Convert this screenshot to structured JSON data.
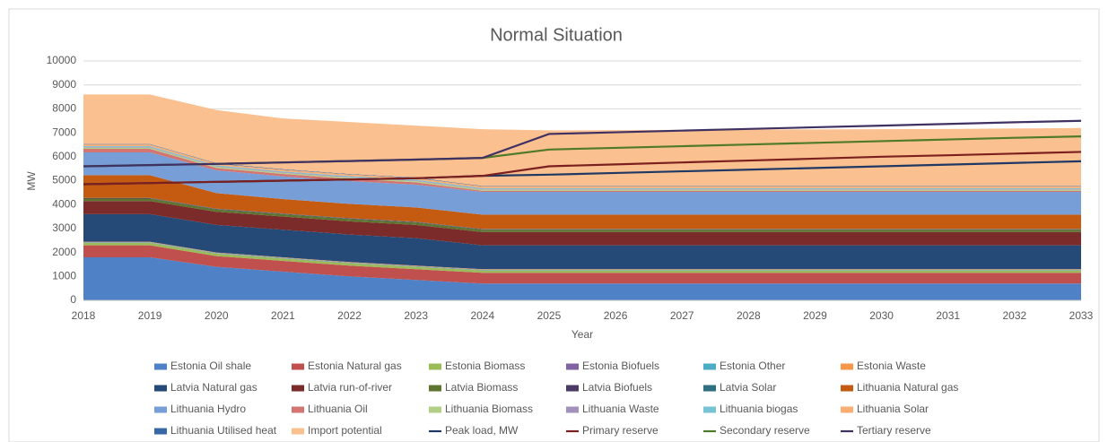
{
  "chart_data": {
    "type": "stacked-area",
    "title": "Normal Situation",
    "x_label": "Year",
    "y_label": "MW",
    "categories": [
      "2018",
      "2019",
      "2020",
      "2021",
      "2022",
      "2023",
      "2024",
      "2025",
      "2026",
      "2027",
      "2028",
      "2029",
      "2030",
      "2031",
      "2032",
      "2033"
    ],
    "ylim": [
      0,
      10000
    ],
    "yticks": [
      0,
      1000,
      2000,
      3000,
      4000,
      5000,
      6000,
      7000,
      8000,
      9000,
      10000
    ],
    "grid": true,
    "legend": "bottom",
    "series": [
      {
        "name": "Estonia Oil shale",
        "color": "#4f81c7",
        "values": [
          1800,
          1800,
          1400,
          1200,
          1000,
          850,
          700,
          700,
          700,
          700,
          700,
          700,
          700,
          700,
          700,
          700
        ]
      },
      {
        "name": "Estonia Natural gas",
        "color": "#c0504d",
        "values": [
          500,
          500,
          450,
          450,
          450,
          450,
          450,
          450,
          450,
          450,
          450,
          450,
          450,
          450,
          450,
          450
        ]
      },
      {
        "name": "Estonia Biomass",
        "color": "#9bbb59",
        "values": [
          100,
          100,
          100,
          100,
          100,
          100,
          100,
          100,
          100,
          100,
          100,
          100,
          100,
          100,
          100,
          100
        ]
      },
      {
        "name": "Estonia Biofuels",
        "color": "#8064a2",
        "values": [
          10,
          10,
          10,
          10,
          10,
          10,
          10,
          10,
          10,
          10,
          10,
          10,
          10,
          10,
          10,
          10
        ]
      },
      {
        "name": "Estonia Other",
        "color": "#4bacc6",
        "values": [
          20,
          20,
          20,
          20,
          20,
          20,
          20,
          20,
          20,
          20,
          20,
          20,
          20,
          20,
          20,
          20
        ]
      },
      {
        "name": "Estonia Waste",
        "color": "#f79646",
        "values": [
          20,
          20,
          20,
          20,
          20,
          20,
          20,
          20,
          20,
          20,
          20,
          20,
          20,
          20,
          20,
          20
        ]
      },
      {
        "name": "Latvia Natural gas",
        "color": "#264a78",
        "values": [
          1150,
          1150,
          1150,
          1150,
          1150,
          1150,
          1000,
          1000,
          1000,
          1000,
          1000,
          1000,
          1000,
          1000,
          1000,
          1000
        ]
      },
      {
        "name": "Latvia run-of-river",
        "color": "#7b2c2a",
        "values": [
          550,
          550,
          550,
          550,
          550,
          550,
          550,
          550,
          550,
          550,
          550,
          550,
          550,
          550,
          550,
          550
        ]
      },
      {
        "name": "Latvia Biomass",
        "color": "#5e7530",
        "values": [
          100,
          100,
          100,
          100,
          100,
          100,
          100,
          100,
          100,
          100,
          100,
          100,
          100,
          100,
          100,
          100
        ]
      },
      {
        "name": "Latvia Biofuels",
        "color": "#4b3a66",
        "values": [
          20,
          20,
          20,
          20,
          20,
          20,
          20,
          20,
          20,
          20,
          20,
          20,
          20,
          20,
          20,
          20
        ]
      },
      {
        "name": "Latvia Solar",
        "color": "#2e6f80",
        "values": [
          10,
          10,
          10,
          10,
          10,
          10,
          10,
          10,
          10,
          10,
          10,
          10,
          10,
          10,
          10,
          10
        ]
      },
      {
        "name": "Lithuania Natural gas",
        "color": "#c55a11",
        "values": [
          950,
          950,
          650,
          600,
          600,
          600,
          600,
          600,
          600,
          600,
          600,
          600,
          600,
          600,
          600,
          600
        ]
      },
      {
        "name": "Lithuania Hydro",
        "color": "#779ed6",
        "values": [
          950,
          950,
          950,
          950,
          950,
          950,
          950,
          950,
          950,
          950,
          950,
          950,
          950,
          950,
          950,
          950
        ]
      },
      {
        "name": "Lithuania Oil",
        "color": "#d27573",
        "values": [
          150,
          150,
          100,
          100,
          100,
          100,
          50,
          50,
          50,
          50,
          50,
          50,
          50,
          50,
          50,
          50
        ]
      },
      {
        "name": "Lithuania Biomass",
        "color": "#b3cf87",
        "values": [
          50,
          50,
          50,
          50,
          50,
          50,
          50,
          50,
          50,
          50,
          50,
          50,
          50,
          50,
          50,
          50
        ]
      },
      {
        "name": "Lithuania Waste",
        "color": "#a391bd",
        "values": [
          30,
          30,
          30,
          30,
          30,
          30,
          30,
          30,
          30,
          30,
          30,
          30,
          30,
          30,
          30,
          30
        ]
      },
      {
        "name": "Lithuania biogas",
        "color": "#78c2d6",
        "values": [
          30,
          30,
          30,
          30,
          30,
          30,
          30,
          30,
          30,
          30,
          30,
          30,
          30,
          30,
          30,
          30
        ]
      },
      {
        "name": "Lithuania Solar",
        "color": "#f9ae73",
        "values": [
          70,
          70,
          70,
          70,
          70,
          70,
          70,
          70,
          70,
          70,
          70,
          70,
          70,
          70,
          70,
          70
        ]
      },
      {
        "name": "Lithuania Utilised heat",
        "color": "#3867a5",
        "values": [
          20,
          20,
          20,
          20,
          20,
          20,
          20,
          20,
          20,
          20,
          20,
          20,
          20,
          20,
          20,
          20
        ]
      },
      {
        "name": "Import potential",
        "color": "#fac090",
        "values": [
          2070,
          2070,
          2220,
          2120,
          2170,
          2170,
          2370,
          2320,
          2330,
          2340,
          2350,
          2360,
          2370,
          2380,
          2400,
          2420
        ]
      },
      {
        "name": "Peak load, MW",
        "color": "#1f3864",
        "type": "line",
        "values": [
          4850,
          4900,
          4950,
          5000,
          5050,
          5100,
          5200,
          5250,
          5320,
          5390,
          5460,
          5530,
          5600,
          5670,
          5740,
          5810
        ]
      },
      {
        "name": "Primary reserve",
        "color": "#7b1f1f",
        "type": "line",
        "values": [
          4850,
          4900,
          4950,
          5000,
          5050,
          5100,
          5200,
          5600,
          5680,
          5760,
          5840,
          5920,
          6000,
          6060,
          6130,
          6200
        ]
      },
      {
        "name": "Secondary reserve",
        "color": "#4f7a28",
        "type": "line",
        "values": [
          5600,
          5650,
          5700,
          5760,
          5820,
          5880,
          5950,
          6300,
          6370,
          6440,
          6510,
          6580,
          6650,
          6720,
          6790,
          6850
        ]
      },
      {
        "name": "Tertiary reserve",
        "color": "#403163",
        "type": "line",
        "values": [
          5600,
          5650,
          5700,
          5760,
          5820,
          5880,
          5950,
          6950,
          7020,
          7090,
          7160,
          7230,
          7300,
          7370,
          7440,
          7500
        ]
      }
    ]
  }
}
